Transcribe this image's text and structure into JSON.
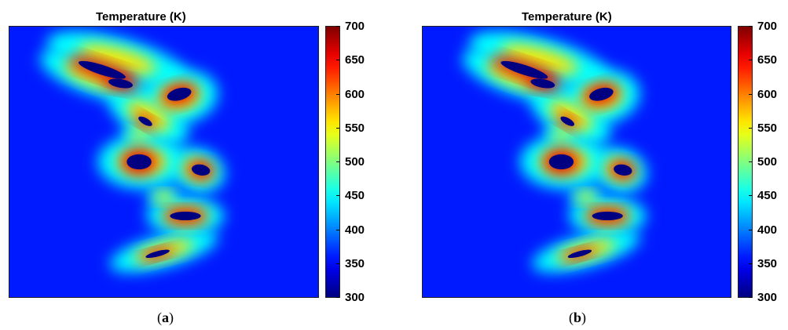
{
  "chart_data": [
    {
      "type": "heatmap",
      "panel": "a",
      "title": "Temperature (K)",
      "caption_open": "(",
      "caption_letter": "a",
      "caption_close": ")",
      "colorbar": {
        "min": 300,
        "max": 700,
        "ticks": [
          "700",
          "650",
          "600",
          "550",
          "500",
          "450",
          "400",
          "350",
          "300"
        ],
        "colormap": "jet"
      },
      "background_temperature_K": 360
    },
    {
      "type": "heatmap",
      "panel": "b",
      "title": "Temperature (K)",
      "caption_open": "(",
      "caption_letter": "b",
      "caption_close": ")",
      "colorbar": {
        "min": 300,
        "max": 700,
        "ticks": [
          "700",
          "650",
          "600",
          "550",
          "500",
          "450",
          "400",
          "350",
          "300"
        ],
        "colormap": "jet"
      },
      "background_temperature_K": 360
    }
  ]
}
